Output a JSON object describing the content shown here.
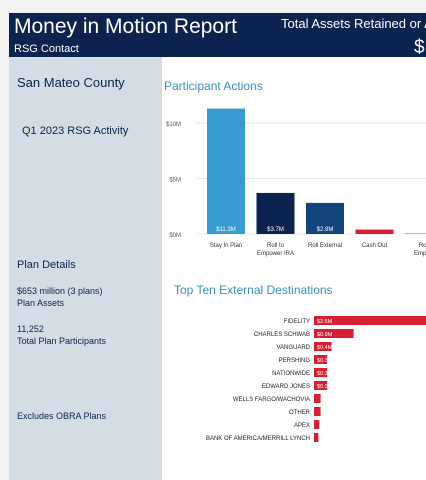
{
  "header": {
    "title": "Money in Motion Report",
    "subtitle": "RSG Contact",
    "assets_label": "Total Assets Retained or A",
    "assets_value": "$"
  },
  "sidebar": {
    "county": "San Mateo County",
    "activity": "Q1 2023 RSG Activity",
    "plan_details_label": "Plan Details",
    "plan_assets_value": "$653 million  (3 plans)",
    "plan_assets_label": "Plan Assets",
    "participants_value": "11,252",
    "participants_label": "Total Plan Participants",
    "note": "Excludes OBRA Plans"
  },
  "sections": {
    "participant_actions": "Participant Actions",
    "top_ten": "Top Ten External Destinations"
  },
  "chart_data": [
    {
      "type": "bar",
      "title": "Participant Actions",
      "categories": [
        "Stay In Plan",
        "Roll to Empower IRA",
        "Roll External",
        "Cash Out",
        "Roll to Empower IRA"
      ],
      "category_lines": [
        [
          "Stay In Plan"
        ],
        [
          "Roll to",
          "Empower IRA"
        ],
        [
          "Roll External"
        ],
        [
          "Cash Out"
        ],
        [
          "Roll",
          "Empow"
        ]
      ],
      "values": [
        11.3,
        3.7,
        2.8,
        0.4,
        0.1
      ],
      "data_labels": [
        "$11.3M",
        "$3.7M",
        "$2.8M",
        "",
        ""
      ],
      "colors": [
        "#3a9bd0",
        "#0c2350",
        "#12447e",
        "#d61f30",
        "#bbbbbb"
      ],
      "y_ticks": [
        0,
        5,
        10
      ],
      "y_tick_labels": [
        "$0M",
        "$5M",
        "$10M"
      ],
      "ylim": [
        0,
        12
      ],
      "grid": true
    },
    {
      "type": "bar",
      "orientation": "horizontal",
      "title": "Top Ten External Destinations",
      "categories": [
        "FIDELITY",
        "CHARLES SCHWAB",
        "VANGUARD",
        "PERSHING",
        "NATIONWIDE",
        "EDWARD JONES",
        "WELLS FARGO/WACHOVIA",
        "OTHER",
        "APEX",
        "BANK OF AMERICA/MERRILL LYNCH"
      ],
      "values": [
        2.6,
        0.9,
        0.4,
        0.3,
        0.3,
        0.3,
        0.15,
        0.15,
        0.12,
        0.1
      ],
      "data_labels": [
        "$2.6M",
        "$0.9M",
        "$0.4M",
        "$0.3M",
        "$0.3M",
        "$0.3M",
        "",
        "",
        "",
        ""
      ],
      "bar_color": "#d61f30"
    }
  ]
}
